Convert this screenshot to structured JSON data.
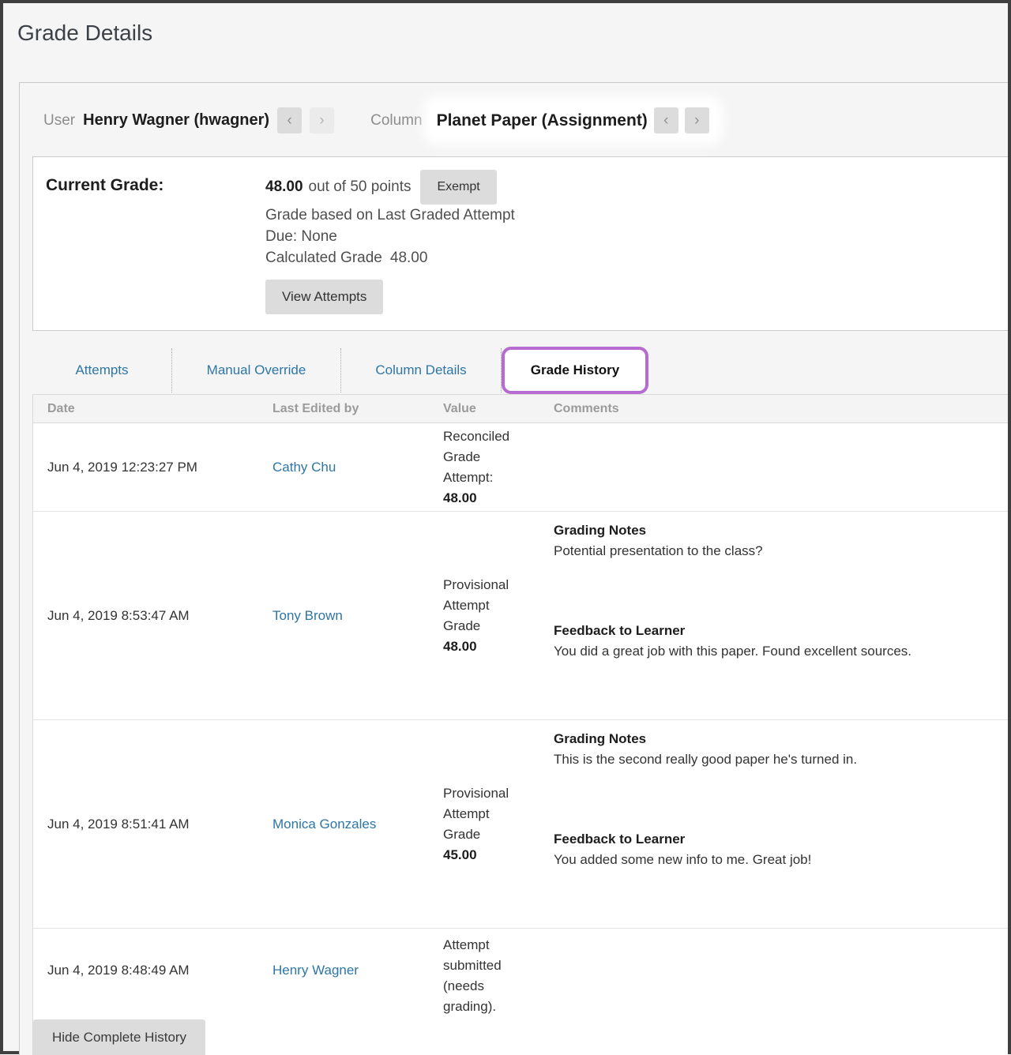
{
  "page": {
    "title": "Grade Details"
  },
  "nav": {
    "user_label": "User",
    "user_name": "Henry Wagner (hwagner)",
    "column_label": "Column",
    "column_name": "Planet Paper (Assignment)",
    "prev_icon": "‹",
    "next_icon": "›"
  },
  "current_grade": {
    "label": "Current Grade:",
    "value": "48.00",
    "out_of": "out of 50 points",
    "exempt_button": "Exempt",
    "based_on": "Grade based on Last Graded Attempt",
    "due": "Due: None",
    "calculated_label": "Calculated Grade",
    "calculated_value": "48.00",
    "view_attempts_button": "View Attempts"
  },
  "tabs": [
    {
      "label": "Attempts",
      "active": false
    },
    {
      "label": "Manual Override",
      "active": false
    },
    {
      "label": "Column Details",
      "active": false
    },
    {
      "label": "Grade History",
      "active": true
    }
  ],
  "history": {
    "columns": [
      "Date",
      "Last Edited by",
      "Value",
      "Comments"
    ],
    "rows": [
      {
        "date": "Jun 4, 2019 12:23:27 PM",
        "editor": "Cathy Chu",
        "value_text": "Reconciled Grade Attempt:",
        "value_grade": "48.00",
        "grading_notes_label": "",
        "grading_notes": "",
        "feedback_label": "",
        "feedback": ""
      },
      {
        "date": "Jun 4, 2019 8:53:47 AM",
        "editor": "Tony Brown",
        "value_text": "Provisional Attempt Grade",
        "value_grade": "48.00",
        "grading_notes_label": "Grading Notes",
        "grading_notes": "Potential presentation to the class?",
        "feedback_label": "Feedback to Learner",
        "feedback": "You did a great job with this paper. Found excellent sources."
      },
      {
        "date": "Jun 4, 2019 8:51:41 AM",
        "editor": "Monica Gonzales",
        "value_text": "Provisional Attempt Grade",
        "value_grade": "45.00",
        "grading_notes_label": "Grading Notes",
        "grading_notes": "This is the second really good paper he's turned in.",
        "feedback_label": "Feedback to Learner",
        "feedback": "You added some new info to me. Great job!"
      },
      {
        "date": "Jun 4, 2019 8:48:49 AM",
        "editor": "Henry Wagner",
        "value_text": "Attempt submitted (needs grading).",
        "value_grade": "",
        "grading_notes_label": "",
        "grading_notes": "",
        "feedback_label": "",
        "feedback": ""
      }
    ],
    "hide_button": "Hide Complete History"
  },
  "colors": {
    "accent_purple": "#b56bd0",
    "link_blue": "#2e76a4",
    "button_gray": "#dcdcdc",
    "frame_dark": "#3f3f3f"
  }
}
